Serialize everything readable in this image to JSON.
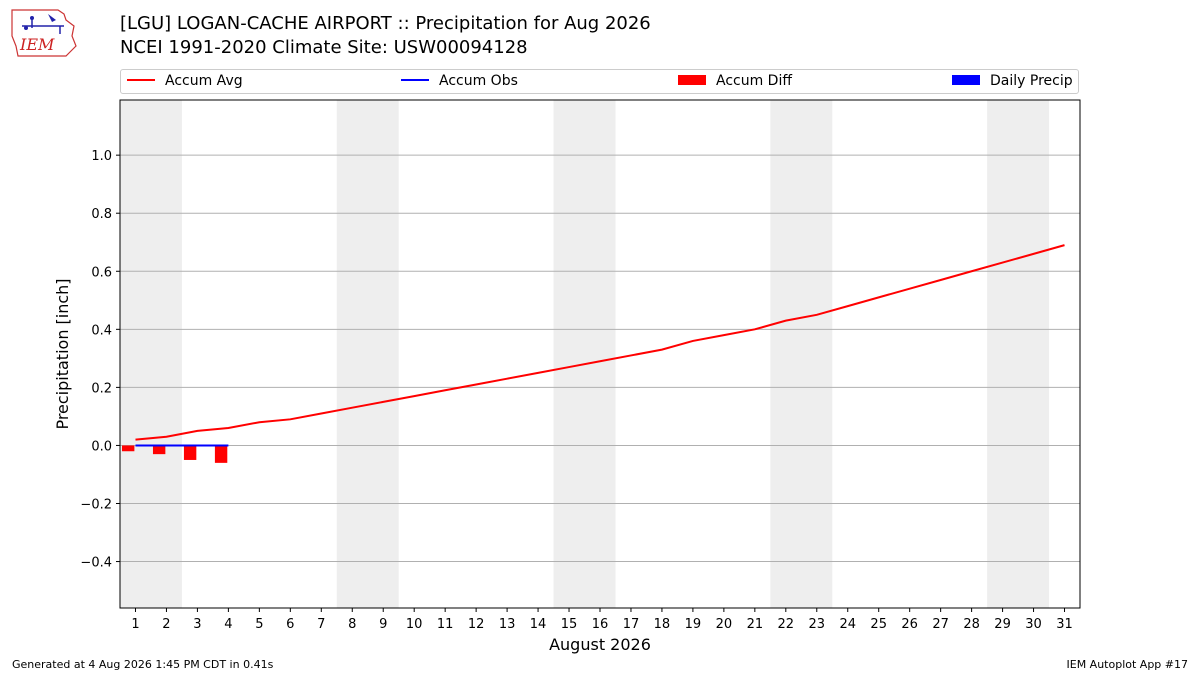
{
  "header": {
    "logo_text": "IEM",
    "title_line1": "[LGU] LOGAN-CACHE AIRPORT :: Precipitation for Aug 2026",
    "title_line2": "NCEI 1991-2020 Climate Site: USW00094128"
  },
  "legend": {
    "items": [
      {
        "label": "Accum Avg",
        "kind": "line",
        "color": "#ff0000"
      },
      {
        "label": "Accum Obs",
        "kind": "line",
        "color": "#0000ff"
      },
      {
        "label": "Accum Diff",
        "kind": "patch",
        "color": "#ff0000"
      },
      {
        "label": "Daily Precip",
        "kind": "patch",
        "color": "#0000ff"
      }
    ]
  },
  "footer": {
    "left": "Generated at 4 Aug 2026 1:45 PM CDT in 0.41s",
    "right": "IEM Autoplot App #17"
  },
  "chart_data": {
    "type": "line",
    "xlabel": "August 2026",
    "ylabel": "Precipitation [inch]",
    "xlim": [
      0.5,
      31.5
    ],
    "ylim": [
      -0.56,
      1.19
    ],
    "x_ticks": [
      1,
      2,
      3,
      4,
      5,
      6,
      7,
      8,
      9,
      10,
      11,
      12,
      13,
      14,
      15,
      16,
      17,
      18,
      19,
      20,
      21,
      22,
      23,
      24,
      25,
      26,
      27,
      28,
      29,
      30,
      31
    ],
    "y_ticks": [
      -0.4,
      -0.2,
      0.0,
      0.2,
      0.4,
      0.6,
      0.8,
      1.0
    ],
    "y_tick_labels": [
      "−0.4",
      "−0.2",
      "0.0",
      "0.2",
      "0.4",
      "0.6",
      "0.8",
      "1.0"
    ],
    "grid": "horizontal",
    "weekend_shading": [
      [
        0.5,
        2.5
      ],
      [
        7.5,
        9.5
      ],
      [
        14.5,
        16.5
      ],
      [
        21.5,
        23.5
      ],
      [
        28.5,
        30.5
      ]
    ],
    "shading_color": "#eeeeee",
    "series": [
      {
        "name": "Accum Avg",
        "kind": "line",
        "color": "#ff0000",
        "x": [
          1,
          2,
          3,
          4,
          5,
          6,
          7,
          8,
          9,
          10,
          11,
          12,
          13,
          14,
          15,
          16,
          17,
          18,
          19,
          20,
          21,
          22,
          23,
          24,
          25,
          26,
          27,
          28,
          29,
          30,
          31
        ],
        "values": [
          0.02,
          0.03,
          0.05,
          0.06,
          0.08,
          0.09,
          0.11,
          0.13,
          0.15,
          0.17,
          0.19,
          0.21,
          0.23,
          0.25,
          0.27,
          0.29,
          0.31,
          0.33,
          0.36,
          0.38,
          0.4,
          0.43,
          0.45,
          0.48,
          0.51,
          0.54,
          0.57,
          0.6,
          0.63,
          0.66,
          0.69
        ]
      },
      {
        "name": "Accum Obs",
        "kind": "line",
        "color": "#0000ff",
        "x": [
          1,
          2,
          3,
          4
        ],
        "values": [
          0.0,
          0.0,
          0.0,
          0.0
        ]
      },
      {
        "name": "Accum Diff",
        "kind": "bar",
        "color": "#ff0000",
        "x": [
          1,
          2,
          3,
          4
        ],
        "values": [
          -0.02,
          -0.03,
          -0.05,
          -0.06
        ]
      },
      {
        "name": "Daily Precip",
        "kind": "bar",
        "color": "#0000ff",
        "x": [
          1,
          2,
          3,
          4
        ],
        "values": [
          0.0,
          0.0,
          0.0,
          0.0
        ]
      }
    ]
  }
}
